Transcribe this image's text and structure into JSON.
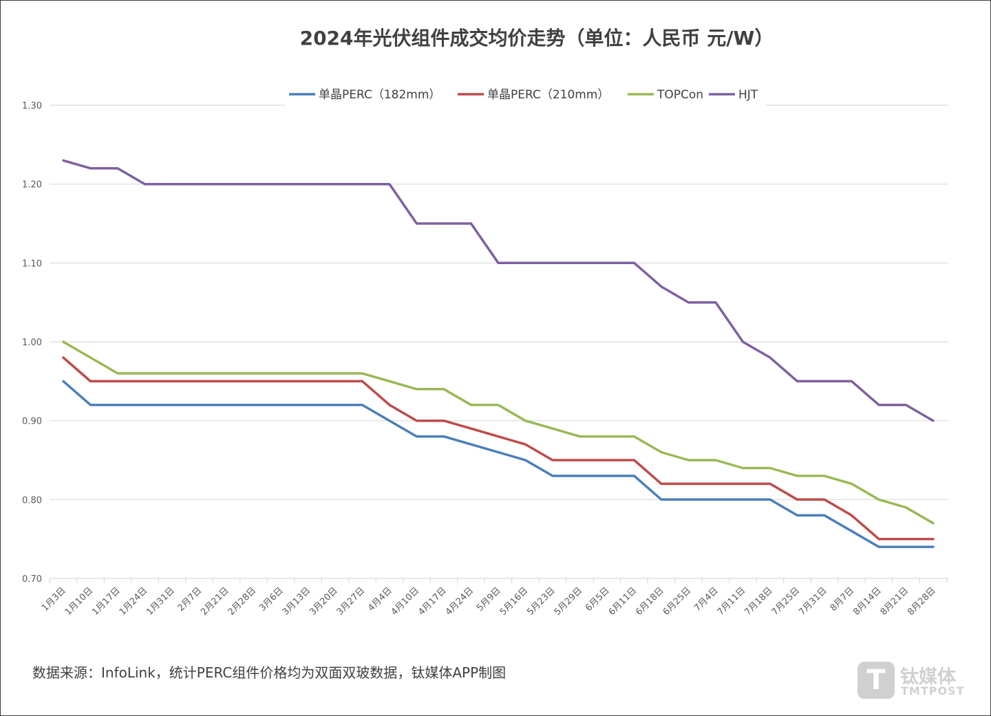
{
  "chart_data": {
    "type": "line",
    "title": "2024年光伏组件成交均价走势（单位：人民币 元/W）",
    "xlabel": "",
    "ylabel": "",
    "ylim": [
      0.7,
      1.3
    ],
    "yticks": [
      "0.70",
      "0.80",
      "0.90",
      "1.00",
      "1.10",
      "1.20",
      "1.30"
    ],
    "grid": true,
    "legend_position": "top",
    "categories": [
      "1月3日",
      "1月10日",
      "1月17日",
      "1月24日",
      "1月31日",
      "2月7日",
      "2月21日",
      "2月28日",
      "3月6日",
      "3月13日",
      "3月20日",
      "3月27日",
      "4月4日",
      "4月10日",
      "4月17日",
      "4月24日",
      "5月9日",
      "5月16日",
      "5月23日",
      "5月29日",
      "6月5日",
      "6月11日",
      "6月18日",
      "6月25日",
      "7月4日",
      "7月11日",
      "7月18日",
      "7月25日",
      "7月31日",
      "8月7日",
      "8月14日",
      "8月21日",
      "8月28日"
    ],
    "series": [
      {
        "name": "单晶PERC（182mm）",
        "color": "#4a7ebb",
        "values": [
          0.95,
          0.92,
          0.92,
          0.92,
          0.92,
          0.92,
          0.92,
          0.92,
          0.92,
          0.92,
          0.92,
          0.92,
          0.9,
          0.88,
          0.88,
          0.87,
          0.86,
          0.85,
          0.83,
          0.83,
          0.83,
          0.83,
          0.8,
          0.8,
          0.8,
          0.8,
          0.8,
          0.78,
          0.78,
          0.76,
          0.74,
          0.74,
          0.74
        ]
      },
      {
        "name": "单晶PERC（210mm）",
        "color": "#be4b48",
        "values": [
          0.98,
          0.95,
          0.95,
          0.95,
          0.95,
          0.95,
          0.95,
          0.95,
          0.95,
          0.95,
          0.95,
          0.95,
          0.92,
          0.9,
          0.9,
          0.89,
          0.88,
          0.87,
          0.85,
          0.85,
          0.85,
          0.85,
          0.82,
          0.82,
          0.82,
          0.82,
          0.82,
          0.8,
          0.8,
          0.78,
          0.75,
          0.75,
          0.75
        ]
      },
      {
        "name": "TOPCon",
        "color": "#98b954",
        "values": [
          1.0,
          0.98,
          0.96,
          0.96,
          0.96,
          0.96,
          0.96,
          0.96,
          0.96,
          0.96,
          0.96,
          0.96,
          0.95,
          0.94,
          0.94,
          0.92,
          0.92,
          0.9,
          0.89,
          0.88,
          0.88,
          0.88,
          0.86,
          0.85,
          0.85,
          0.84,
          0.84,
          0.83,
          0.83,
          0.82,
          0.8,
          0.79,
          0.77
        ]
      },
      {
        "name": "HJT",
        "color": "#7d60a0",
        "values": [
          1.23,
          1.22,
          1.22,
          1.2,
          1.2,
          1.2,
          1.2,
          1.2,
          1.2,
          1.2,
          1.2,
          1.2,
          1.2,
          1.15,
          1.15,
          1.15,
          1.1,
          1.1,
          1.1,
          1.1,
          1.1,
          1.1,
          1.07,
          1.05,
          1.05,
          1.0,
          0.98,
          0.95,
          0.95,
          0.95,
          0.92,
          0.92,
          0.9
        ]
      }
    ]
  },
  "source_note": "数据来源：InfoLink，统计PERC组件价格均为双面双玻数据，钛媒体APP制图",
  "watermark": {
    "logo_glyph": "T",
    "name_cn": "钛媒体",
    "name_en": "TMTPOST"
  }
}
